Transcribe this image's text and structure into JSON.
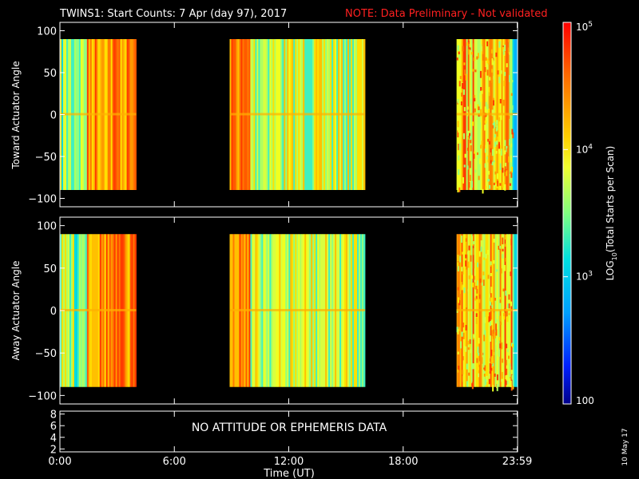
{
  "header": {
    "title": "TWINS1: Start Counts:  7 Apr (day  97), 2017",
    "note": "NOTE: Data Preliminary - Not validated",
    "note_color": "#ff2020"
  },
  "stamp": "10 May 17",
  "colorbar": {
    "label_prefix": "LOG",
    "label_sub": "10",
    "label_suffix": "(Total Starts per Scan)",
    "tick_labels": [
      {
        "base": "10",
        "exp": "5",
        "value": 100000
      },
      {
        "base": "10",
        "exp": "4",
        "value": 10000
      },
      {
        "base": "10",
        "exp": "3",
        "value": 1000
      },
      {
        "base": "100",
        "exp": "",
        "value": 100
      }
    ],
    "range": [
      100,
      100000
    ],
    "scale": "log",
    "colormap": "rainbow (dark blue to red)"
  },
  "chart_data": [
    {
      "type": "heatmap",
      "ylabel": "Toward Actuator Angle",
      "yticks": [
        "100",
        "50",
        "0",
        "−50",
        "−100"
      ],
      "ytick_values": [
        100,
        50,
        0,
        -50,
        -100
      ],
      "ylim": [
        -110,
        110
      ],
      "xlim": [
        0,
        24
      ],
      "data_angle_range": [
        -90,
        90
      ],
      "data_segments": [
        {
          "start_hour": 0.0,
          "end_hour": 4.0
        },
        {
          "start_hour": 8.9,
          "end_hour": 16.0
        },
        {
          "start_hour": 20.8,
          "end_hour": 23.98
        }
      ]
    },
    {
      "type": "heatmap",
      "ylabel": "Away Actuator Angle",
      "yticks": [
        "100",
        "50",
        "0",
        "−50",
        "−100"
      ],
      "ytick_values": [
        100,
        50,
        0,
        -50,
        -100
      ],
      "ylim": [
        -110,
        110
      ],
      "xlim": [
        0,
        24
      ],
      "data_angle_range": [
        -90,
        90
      ],
      "data_segments": [
        {
          "start_hour": 0.0,
          "end_hour": 4.0
        },
        {
          "start_hour": 8.9,
          "end_hour": 16.0
        },
        {
          "start_hour": 20.8,
          "end_hour": 23.98
        }
      ]
    },
    {
      "type": "line",
      "message": "NO ATTITUDE OR EPHEMERIS DATA",
      "yticks": [
        "8",
        "6",
        "4",
        "2"
      ],
      "ytick_values": [
        8,
        6,
        4,
        2
      ],
      "ylim": [
        1.5,
        8.5
      ],
      "xlim": [
        0,
        24
      ]
    }
  ],
  "xaxis": {
    "label": "Time (UT)",
    "tick_labels": [
      "0:00",
      "6:00",
      "12:00",
      "18:00",
      "23:59"
    ],
    "tick_values": [
      0,
      6,
      12,
      18,
      23.98
    ]
  }
}
